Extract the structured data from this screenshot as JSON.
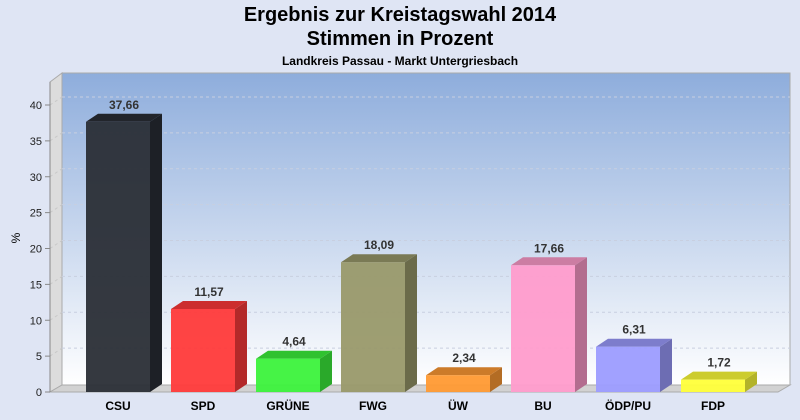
{
  "chart_data": {
    "type": "bar",
    "title": "Ergebnis zur Kreistagswahl 2014",
    "subtitle": "Stimmen in Prozent",
    "subtitle2": "Landkreis Passau - Markt Untergriesbach",
    "xlabel": "",
    "ylabel": "%",
    "ylim": [
      0,
      40
    ],
    "yticks": [
      0,
      5,
      10,
      15,
      20,
      25,
      30,
      35,
      40
    ],
    "grid": true,
    "categories": [
      "CSU",
      "SPD",
      "GRÜNE",
      "FWG",
      "ÜW",
      "BU",
      "ÖDP/PU",
      "FDP"
    ],
    "values": [
      37.66,
      11.57,
      4.64,
      18.09,
      2.34,
      17.66,
      6.31,
      1.72
    ],
    "labels": [
      "37,66",
      "11,57",
      "4,64",
      "18,09",
      "2,34",
      "17,66",
      "6,31",
      "1,72"
    ],
    "colors": [
      "#2a2e36",
      "#ff3a3a",
      "#3cf23c",
      "#99996a",
      "#ff9a33",
      "#ff9ccc",
      "#9c9cff",
      "#ffff3a"
    ]
  }
}
